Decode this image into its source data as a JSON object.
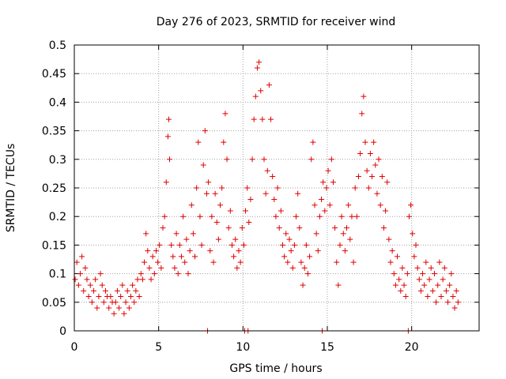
{
  "chart_data": {
    "type": "scatter",
    "title": "Day 276 of 2023, SRMTID for receiver wind",
    "xlabel": "GPS time / hours",
    "ylabel": "SRMTID / TECUs",
    "xlim": [
      0,
      24
    ],
    "ylim": [
      0,
      0.5
    ],
    "x_ticks": [
      0,
      5,
      10,
      15,
      20
    ],
    "y_ticks": [
      0,
      0.05,
      0.1,
      0.15,
      0.2,
      0.25,
      0.3,
      0.35,
      0.4,
      0.45,
      0.5
    ],
    "x_tick_labels": [
      "0",
      "5",
      "10",
      "15",
      "20"
    ],
    "y_tick_labels": [
      "0",
      "0.05",
      "0.1",
      "0.15",
      "0.2",
      "0.25",
      "0.3",
      "0.35",
      "0.4",
      "0.45",
      "0.5"
    ],
    "grid": true,
    "marker": "+",
    "color": "#e00000",
    "series": [
      {
        "name": "SRMTID",
        "points": [
          [
            0.05,
            0.09
          ],
          [
            0.15,
            0.12
          ],
          [
            0.25,
            0.08
          ],
          [
            0.35,
            0.1
          ],
          [
            0.45,
            0.13
          ],
          [
            0.55,
            0.07
          ],
          [
            0.65,
            0.11
          ],
          [
            0.75,
            0.09
          ],
          [
            0.85,
            0.06
          ],
          [
            0.95,
            0.08
          ],
          [
            1.05,
            0.05
          ],
          [
            1.15,
            0.07
          ],
          [
            1.25,
            0.09
          ],
          [
            1.35,
            0.04
          ],
          [
            1.45,
            0.06
          ],
          [
            1.55,
            0.1
          ],
          [
            1.65,
            0.08
          ],
          [
            1.75,
            0.05
          ],
          [
            1.85,
            0.07
          ],
          [
            1.95,
            0.06
          ],
          [
            2.05,
            0.04
          ],
          [
            2.15,
            0.06
          ],
          [
            2.25,
            0.05
          ],
          [
            2.35,
            0.03
          ],
          [
            2.45,
            0.05
          ],
          [
            2.55,
            0.07
          ],
          [
            2.65,
            0.04
          ],
          [
            2.75,
            0.06
          ],
          [
            2.85,
            0.08
          ],
          [
            2.95,
            0.03
          ],
          [
            3.05,
            0.05
          ],
          [
            3.15,
            0.07
          ],
          [
            3.25,
            0.04
          ],
          [
            3.35,
            0.06
          ],
          [
            3.45,
            0.08
          ],
          [
            3.55,
            0.05
          ],
          [
            3.65,
            0.07
          ],
          [
            3.75,
            0.09
          ],
          [
            3.85,
            0.06
          ],
          [
            3.95,
            0.1
          ],
          [
            4.05,
            0.09
          ],
          [
            4.15,
            0.12
          ],
          [
            4.25,
            0.17
          ],
          [
            4.35,
            0.14
          ],
          [
            4.45,
            0.11
          ],
          [
            4.55,
            0.09
          ],
          [
            4.65,
            0.13
          ],
          [
            4.75,
            0.1
          ],
          [
            4.85,
            0.14
          ],
          [
            4.95,
            0.12
          ],
          [
            5.05,
            0.15
          ],
          [
            5.15,
            0.11
          ],
          [
            5.25,
            0.18
          ],
          [
            5.35,
            0.2
          ],
          [
            5.45,
            0.26
          ],
          [
            5.55,
            0.34
          ],
          [
            5.6,
            0.37
          ],
          [
            5.65,
            0.3
          ],
          [
            5.75,
            0.15
          ],
          [
            5.85,
            0.13
          ],
          [
            5.95,
            0.11
          ],
          [
            6.05,
            0.17
          ],
          [
            6.15,
            0.1
          ],
          [
            6.25,
            0.15
          ],
          [
            6.35,
            0.13
          ],
          [
            6.45,
            0.2
          ],
          [
            6.55,
            0.12
          ],
          [
            6.65,
            0.16
          ],
          [
            6.75,
            0.1
          ],
          [
            6.85,
            0.14
          ],
          [
            6.95,
            0.22
          ],
          [
            7.05,
            0.17
          ],
          [
            7.15,
            0.13
          ],
          [
            7.25,
            0.25
          ],
          [
            7.35,
            0.33
          ],
          [
            7.45,
            0.2
          ],
          [
            7.55,
            0.15
          ],
          [
            7.65,
            0.29
          ],
          [
            7.75,
            0.35
          ],
          [
            7.85,
            0.24
          ],
          [
            7.95,
            0.26
          ],
          [
            8.05,
            0.14
          ],
          [
            8.15,
            0.2
          ],
          [
            8.25,
            0.12
          ],
          [
            8.35,
            0.24
          ],
          [
            8.45,
            0.19
          ],
          [
            8.55,
            0.16
          ],
          [
            8.65,
            0.22
          ],
          [
            8.75,
            0.25
          ],
          [
            8.85,
            0.33
          ],
          [
            8.95,
            0.38
          ],
          [
            9.05,
            0.3
          ],
          [
            9.15,
            0.18
          ],
          [
            9.25,
            0.21
          ],
          [
            9.35,
            0.15
          ],
          [
            9.45,
            0.13
          ],
          [
            9.55,
            0.16
          ],
          [
            9.65,
            0.11
          ],
          [
            9.75,
            0.14
          ],
          [
            9.85,
            0.12
          ],
          [
            9.95,
            0.18
          ],
          [
            10.05,
            0.15
          ],
          [
            10.15,
            0.21
          ],
          [
            10.25,
            0.25
          ],
          [
            10.35,
            0.19
          ],
          [
            10.45,
            0.23
          ],
          [
            10.55,
            0.3
          ],
          [
            10.65,
            0.37
          ],
          [
            10.75,
            0.41
          ],
          [
            10.85,
            0.46
          ],
          [
            10.95,
            0.47
          ],
          [
            11.05,
            0.42
          ],
          [
            11.15,
            0.37
          ],
          [
            11.25,
            0.3
          ],
          [
            11.35,
            0.24
          ],
          [
            11.45,
            0.28
          ],
          [
            11.55,
            0.43
          ],
          [
            11.65,
            0.37
          ],
          [
            11.75,
            0.27
          ],
          [
            11.85,
            0.23
          ],
          [
            11.95,
            0.2
          ],
          [
            12.05,
            0.25
          ],
          [
            12.15,
            0.18
          ],
          [
            12.25,
            0.21
          ],
          [
            12.35,
            0.15
          ],
          [
            12.45,
            0.13
          ],
          [
            12.55,
            0.17
          ],
          [
            12.65,
            0.12
          ],
          [
            12.75,
            0.16
          ],
          [
            12.85,
            0.14
          ],
          [
            12.95,
            0.11
          ],
          [
            13.05,
            0.15
          ],
          [
            13.15,
            0.2
          ],
          [
            13.25,
            0.24
          ],
          [
            13.35,
            0.18
          ],
          [
            13.45,
            0.12
          ],
          [
            13.55,
            0.08
          ],
          [
            13.65,
            0.11
          ],
          [
            13.75,
            0.15
          ],
          [
            13.85,
            0.1
          ],
          [
            13.95,
            0.13
          ],
          [
            14.05,
            0.3
          ],
          [
            14.15,
            0.33
          ],
          [
            14.25,
            0.22
          ],
          [
            14.35,
            0.17
          ],
          [
            14.45,
            0.14
          ],
          [
            14.55,
            0.2
          ],
          [
            14.65,
            0.23
          ],
          [
            14.75,
            0.26
          ],
          [
            14.85,
            0.21
          ],
          [
            14.95,
            0.25
          ],
          [
            15.05,
            0.28
          ],
          [
            15.15,
            0.22
          ],
          [
            15.25,
            0.3
          ],
          [
            15.35,
            0.26
          ],
          [
            15.45,
            0.18
          ],
          [
            15.55,
            0.12
          ],
          [
            15.65,
            0.08
          ],
          [
            15.75,
            0.15
          ],
          [
            15.85,
            0.2
          ],
          [
            15.95,
            0.17
          ],
          [
            16.05,
            0.14
          ],
          [
            16.15,
            0.18
          ],
          [
            16.25,
            0.22
          ],
          [
            16.35,
            0.16
          ],
          [
            16.45,
            0.2
          ],
          [
            16.55,
            0.12
          ],
          [
            16.65,
            0.25
          ],
          [
            16.75,
            0.2
          ],
          [
            16.85,
            0.27
          ],
          [
            16.95,
            0.31
          ],
          [
            17.05,
            0.38
          ],
          [
            17.15,
            0.41
          ],
          [
            17.25,
            0.33
          ],
          [
            17.35,
            0.28
          ],
          [
            17.45,
            0.25
          ],
          [
            17.55,
            0.31
          ],
          [
            17.65,
            0.27
          ],
          [
            17.75,
            0.33
          ],
          [
            17.85,
            0.29
          ],
          [
            17.95,
            0.24
          ],
          [
            18.05,
            0.3
          ],
          [
            18.15,
            0.22
          ],
          [
            18.25,
            0.27
          ],
          [
            18.35,
            0.18
          ],
          [
            18.45,
            0.21
          ],
          [
            18.55,
            0.26
          ],
          [
            18.65,
            0.16
          ],
          [
            18.75,
            0.12
          ],
          [
            18.85,
            0.14
          ],
          [
            18.95,
            0.1
          ],
          [
            19.05,
            0.08
          ],
          [
            19.15,
            0.13
          ],
          [
            19.25,
            0.09
          ],
          [
            19.35,
            0.07
          ],
          [
            19.45,
            0.11
          ],
          [
            19.55,
            0.08
          ],
          [
            19.65,
            0.06
          ],
          [
            19.75,
            0.1
          ],
          [
            19.85,
            0.2
          ],
          [
            19.95,
            0.22
          ],
          [
            20.05,
            0.17
          ],
          [
            20.15,
            0.13
          ],
          [
            20.25,
            0.15
          ],
          [
            20.35,
            0.11
          ],
          [
            20.45,
            0.09
          ],
          [
            20.55,
            0.07
          ],
          [
            20.65,
            0.1
          ],
          [
            20.75,
            0.08
          ],
          [
            20.85,
            0.12
          ],
          [
            20.95,
            0.06
          ],
          [
            21.05,
            0.09
          ],
          [
            21.15,
            0.11
          ],
          [
            21.25,
            0.07
          ],
          [
            21.35,
            0.1
          ],
          [
            21.45,
            0.05
          ],
          [
            21.55,
            0.08
          ],
          [
            21.65,
            0.12
          ],
          [
            21.75,
            0.06
          ],
          [
            21.85,
            0.09
          ],
          [
            21.95,
            0.11
          ],
          [
            22.05,
            0.07
          ],
          [
            22.15,
            0.05
          ],
          [
            22.25,
            0.08
          ],
          [
            22.35,
            0.1
          ],
          [
            22.45,
            0.06
          ],
          [
            22.55,
            0.04
          ],
          [
            22.65,
            0.07
          ],
          [
            22.75,
            0.05
          ],
          [
            7.9,
            0.0
          ],
          [
            10.1,
            0.0
          ],
          [
            10.3,
            0.0
          ],
          [
            14.7,
            0.0
          ],
          [
            19.8,
            0.0
          ]
        ]
      }
    ]
  }
}
